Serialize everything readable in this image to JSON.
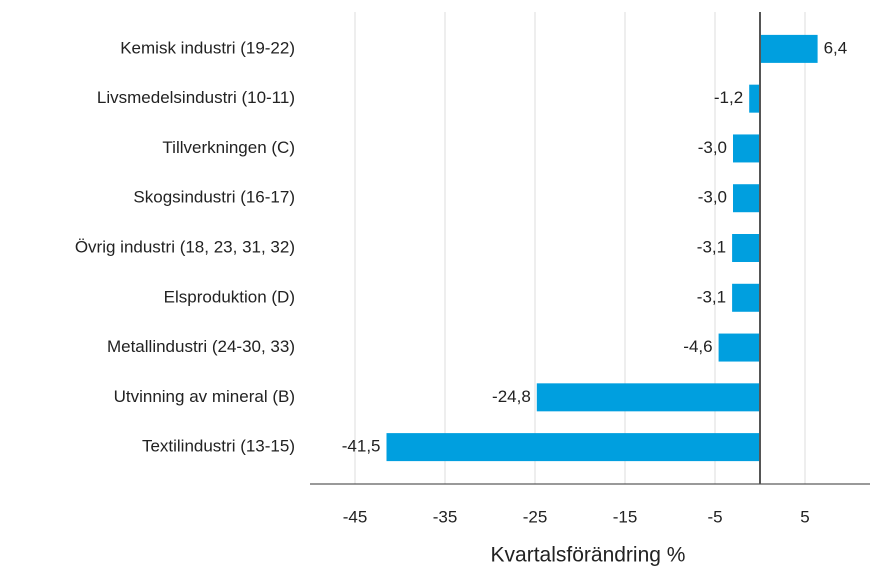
{
  "chart_data": {
    "type": "bar",
    "orientation": "horizontal",
    "x_label": "Kvartalsförändring %",
    "categories": [
      "Kemisk industri (19-22)",
      "Livsmedelsindustri (10-11)",
      "Tillverkningen (C)",
      "Skogsindustri (16-17)",
      "Övrig industri (18, 23, 31, 32)",
      "Elsproduktion (D)",
      "Metallindustri (24-30, 33)",
      "Utvinning av mineral (B)",
      "Textilindustri (13-15)"
    ],
    "values": [
      6.4,
      -1.2,
      -3.0,
      -3.0,
      -3.1,
      -3.1,
      -4.6,
      -24.8,
      -41.5
    ],
    "value_labels": [
      "6,4",
      "-1,2",
      "-3,0",
      "-3,0",
      "-3,1",
      "-3,1",
      "-4,6",
      "-24,8",
      "-41,5"
    ],
    "color": "#009fdf",
    "xlim": [
      -50,
      12
    ],
    "xticks": [
      -45,
      -35,
      -25,
      -15,
      -5,
      5
    ],
    "grid": true
  }
}
